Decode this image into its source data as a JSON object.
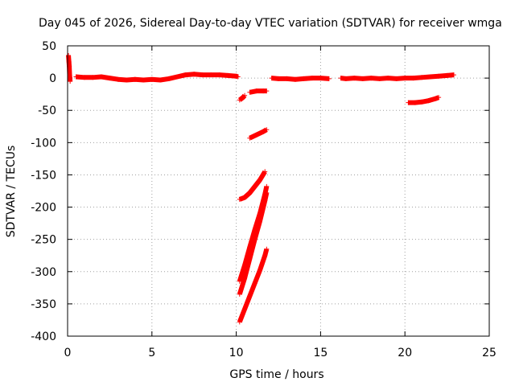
{
  "chart_data": {
    "type": "scatter",
    "title": "Day 045 of 2026, Sidereal Day-to-day VTEC variation (SDTVAR) for receiver wmga",
    "xlabel": "GPS time / hours",
    "ylabel": "SDTVAR / TECUs",
    "xlim": [
      0,
      25
    ],
    "ylim": [
      -400,
      50
    ],
    "xticks": [
      0,
      5,
      10,
      15,
      20,
      25
    ],
    "yticks": [
      50,
      0,
      -50,
      -100,
      -150,
      -200,
      -250,
      -300,
      -350,
      -400
    ],
    "xtick_labels": [
      "0",
      "5",
      "10",
      "15",
      "20",
      "25"
    ],
    "ytick_labels": [
      "50",
      "0",
      "-50",
      "-100",
      "-150",
      "-200",
      "-250",
      "-300",
      "-350",
      "-400"
    ],
    "grid": true,
    "legend": "none",
    "marker": "+",
    "color": "#ff0000",
    "series": [
      {
        "segments": [
          [
            [
              0.05,
              35
            ],
            [
              0.08,
              25
            ],
            [
              0.1,
              18
            ],
            [
              0.12,
              5
            ],
            [
              0.15,
              -5
            ]
          ],
          [
            [
              0.5,
              2
            ],
            [
              1.0,
              1
            ],
            [
              1.5,
              1
            ],
            [
              2.0,
              2
            ],
            [
              2.5,
              0
            ],
            [
              3.0,
              -2
            ],
            [
              3.5,
              -3
            ],
            [
              4.0,
              -2
            ],
            [
              4.5,
              -3
            ],
            [
              5.0,
              -2
            ],
            [
              5.5,
              -3
            ],
            [
              6.0,
              -1
            ],
            [
              6.5,
              2
            ],
            [
              7.0,
              5
            ],
            [
              7.5,
              6
            ],
            [
              8.0,
              5
            ],
            [
              8.5,
              5
            ],
            [
              9.0,
              5
            ],
            [
              9.5,
              4
            ],
            [
              10.0,
              3
            ],
            [
              10.1,
              2
            ]
          ],
          [
            [
              10.2,
              -34
            ],
            [
              10.4,
              -30
            ],
            [
              10.5,
              -27
            ]
          ],
          [
            [
              10.8,
              -22
            ],
            [
              11.2,
              -20
            ],
            [
              11.6,
              -20
            ],
            [
              11.8,
              -20
            ]
          ],
          [
            [
              10.8,
              -93
            ],
            [
              11.2,
              -88
            ],
            [
              11.6,
              -83
            ],
            [
              11.8,
              -80
            ]
          ],
          [
            [
              10.2,
              -188
            ],
            [
              10.5,
              -185
            ],
            [
              10.8,
              -178
            ],
            [
              11.1,
              -168
            ],
            [
              11.4,
              -158
            ],
            [
              11.7,
              -145
            ]
          ],
          [
            [
              10.2,
              -315
            ],
            [
              10.5,
              -290
            ],
            [
              10.8,
              -262
            ],
            [
              11.1,
              -235
            ],
            [
              11.4,
              -210
            ],
            [
              11.7,
              -180
            ],
            [
              11.8,
              -168
            ]
          ],
          [
            [
              10.2,
              -335
            ],
            [
              10.5,
              -310
            ],
            [
              10.8,
              -280
            ],
            [
              11.1,
              -250
            ],
            [
              11.4,
              -222
            ],
            [
              11.7,
              -190
            ],
            [
              11.8,
              -178
            ]
          ],
          [
            [
              10.2,
              -378
            ],
            [
              10.5,
              -358
            ],
            [
              10.8,
              -338
            ],
            [
              11.1,
              -318
            ],
            [
              11.4,
              -298
            ],
            [
              11.7,
              -275
            ],
            [
              11.8,
              -265
            ]
          ],
          [
            [
              12.1,
              0
            ],
            [
              12.5,
              -1
            ],
            [
              13.0,
              -1
            ],
            [
              13.5,
              -2
            ],
            [
              14.0,
              -1
            ],
            [
              14.5,
              0
            ],
            [
              15.0,
              0
            ],
            [
              15.5,
              -1
            ]
          ],
          [
            [
              16.2,
              0
            ],
            [
              16.5,
              -1
            ],
            [
              17.0,
              0
            ],
            [
              17.5,
              -1
            ],
            [
              18.0,
              0
            ],
            [
              18.5,
              -1
            ],
            [
              19.0,
              0
            ],
            [
              19.5,
              -1
            ],
            [
              20.0,
              0
            ],
            [
              20.5,
              0
            ],
            [
              21.0,
              1
            ],
            [
              21.5,
              2
            ],
            [
              22.0,
              3
            ],
            [
              22.5,
              4
            ],
            [
              22.9,
              5
            ]
          ],
          [
            [
              20.2,
              -38
            ],
            [
              20.6,
              -38
            ],
            [
              21.0,
              -37
            ],
            [
              21.4,
              -35
            ],
            [
              21.8,
              -32
            ],
            [
              22.0,
              -30
            ]
          ]
        ]
      }
    ]
  }
}
